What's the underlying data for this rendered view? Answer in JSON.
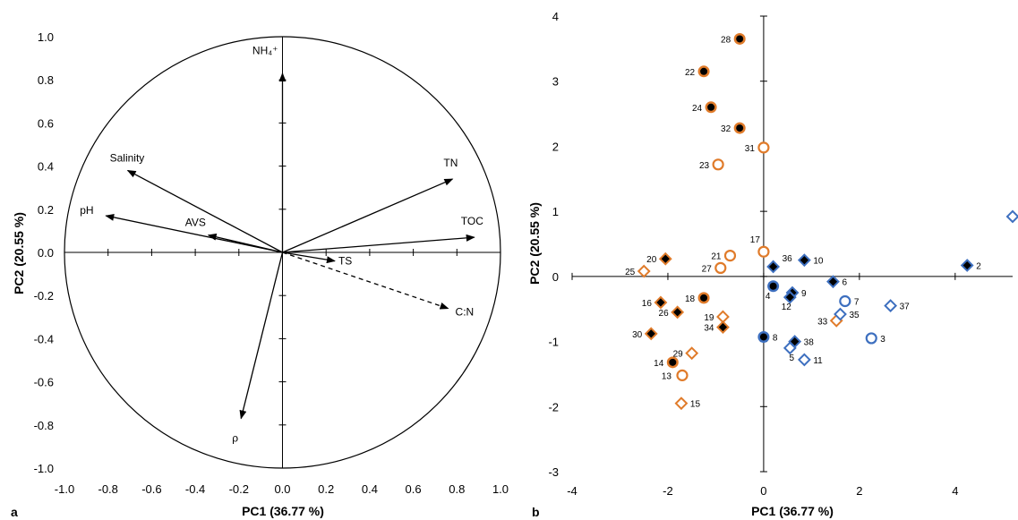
{
  "chart_data": [
    {
      "type": "scatter",
      "panel_label": "a",
      "xlabel": "PC1 (36.77 %)",
      "ylabel": "PC2 (20.55 %)",
      "xlim": [
        -1.0,
        1.0
      ],
      "ylim": [
        -1.0,
        1.0
      ],
      "xticks": [
        "-1.0",
        "-0.8",
        "-0.6",
        "-0.4",
        "-0.2",
        "0.0",
        "0.2",
        "0.4",
        "0.6",
        "0.8",
        "1.0"
      ],
      "yticks": [
        "-1.0",
        "-0.8",
        "-0.6",
        "-0.4",
        "-0.2",
        "0.0",
        "0.2",
        "0.4",
        "0.6",
        "0.8",
        "1.0"
      ],
      "unit_circle": true,
      "grid": false,
      "vectors": [
        {
          "name": "NH₄⁺",
          "x": 0.0,
          "y": 0.83,
          "dashed": false
        },
        {
          "name": "Salinity",
          "x": -0.71,
          "y": 0.38,
          "dashed": false
        },
        {
          "name": "pH",
          "x": -0.81,
          "y": 0.17,
          "dashed": false
        },
        {
          "name": "AVS",
          "x": -0.34,
          "y": 0.08,
          "dashed": false
        },
        {
          "name": "TN",
          "x": 0.78,
          "y": 0.34,
          "dashed": false
        },
        {
          "name": "TOC",
          "x": 0.88,
          "y": 0.07,
          "dashed": false
        },
        {
          "name": "TS",
          "x": 0.24,
          "y": -0.04,
          "dashed": false
        },
        {
          "name": "C:N",
          "x": 0.76,
          "y": -0.26,
          "dashed": true
        },
        {
          "name": "ρ",
          "x": -0.19,
          "y": -0.77,
          "dashed": false
        }
      ]
    },
    {
      "type": "scatter",
      "panel_label": "b",
      "xlabel": "PC1 (36.77 %)",
      "ylabel": "PC2 (20.55 %)",
      "xlim": [
        -4,
        5.2
      ],
      "ylim": [
        -3,
        4
      ],
      "xticks": [
        -4,
        -2,
        0,
        2,
        4
      ],
      "yticks": [
        -3,
        -2,
        -1,
        0,
        1,
        2,
        3,
        4
      ],
      "grid": false,
      "colors": {
        "orange": "#e07b2a",
        "blue": "#3d6fbf",
        "black": "#000000"
      },
      "points": [
        {
          "id": "1",
          "x": 5.2,
          "y": 0.92,
          "color": "blue",
          "shape": "diamond",
          "fill": "open"
        },
        {
          "id": "2",
          "x": 4.25,
          "y": 0.17,
          "color": "blue",
          "shape": "diamond",
          "fill": "filled"
        },
        {
          "id": "3",
          "x": 2.25,
          "y": -0.95,
          "color": "blue",
          "shape": "circle",
          "fill": "open"
        },
        {
          "id": "4",
          "x": 0.2,
          "y": -0.15,
          "color": "blue",
          "shape": "circle",
          "fill": "filled"
        },
        {
          "id": "5",
          "x": 0.55,
          "y": -1.1,
          "color": "blue",
          "shape": "diamond",
          "fill": "open"
        },
        {
          "id": "6",
          "x": 1.45,
          "y": -0.08,
          "color": "blue",
          "shape": "diamond",
          "fill": "filled"
        },
        {
          "id": "7",
          "x": 1.7,
          "y": -0.38,
          "color": "blue",
          "shape": "circle",
          "fill": "open"
        },
        {
          "id": "8",
          "x": 0.0,
          "y": -0.93,
          "color": "blue",
          "shape": "circle",
          "fill": "filled"
        },
        {
          "id": "9",
          "x": 0.6,
          "y": -0.25,
          "color": "blue",
          "shape": "diamond",
          "fill": "filled"
        },
        {
          "id": "10",
          "x": 0.85,
          "y": 0.25,
          "color": "blue",
          "shape": "diamond",
          "fill": "filled"
        },
        {
          "id": "11",
          "x": 0.85,
          "y": -1.28,
          "color": "blue",
          "shape": "diamond",
          "fill": "open"
        },
        {
          "id": "12",
          "x": 0.55,
          "y": -0.32,
          "color": "blue",
          "shape": "diamond",
          "fill": "filled"
        },
        {
          "id": "13",
          "x": -1.7,
          "y": -1.52,
          "color": "orange",
          "shape": "circle",
          "fill": "open"
        },
        {
          "id": "14",
          "x": -1.9,
          "y": -1.32,
          "color": "orange",
          "shape": "circle",
          "fill": "filled"
        },
        {
          "id": "15",
          "x": -1.72,
          "y": -1.95,
          "color": "orange",
          "shape": "diamond",
          "fill": "open"
        },
        {
          "id": "16",
          "x": -2.15,
          "y": -0.4,
          "color": "orange",
          "shape": "diamond",
          "fill": "filled"
        },
        {
          "id": "17",
          "x": 0.0,
          "y": 0.38,
          "color": "orange",
          "shape": "circle",
          "fill": "open"
        },
        {
          "id": "18",
          "x": -1.25,
          "y": -0.33,
          "color": "orange",
          "shape": "circle",
          "fill": "filled"
        },
        {
          "id": "19",
          "x": -0.85,
          "y": -0.62,
          "color": "orange",
          "shape": "diamond",
          "fill": "open"
        },
        {
          "id": "20",
          "x": -2.05,
          "y": 0.27,
          "color": "orange",
          "shape": "diamond",
          "fill": "filled"
        },
        {
          "id": "21",
          "x": -0.7,
          "y": 0.32,
          "color": "orange",
          "shape": "circle",
          "fill": "open"
        },
        {
          "id": "22",
          "x": -1.25,
          "y": 3.15,
          "color": "orange",
          "shape": "circle",
          "fill": "filled"
        },
        {
          "id": "23",
          "x": -0.95,
          "y": 1.72,
          "color": "orange",
          "shape": "circle",
          "fill": "open"
        },
        {
          "id": "24",
          "x": -1.1,
          "y": 2.6,
          "color": "orange",
          "shape": "circle",
          "fill": "filled"
        },
        {
          "id": "25",
          "x": -2.5,
          "y": 0.08,
          "color": "orange",
          "shape": "diamond",
          "fill": "open"
        },
        {
          "id": "26",
          "x": -1.8,
          "y": -0.55,
          "color": "orange",
          "shape": "diamond",
          "fill": "filled"
        },
        {
          "id": "27",
          "x": -0.9,
          "y": 0.13,
          "color": "orange",
          "shape": "circle",
          "fill": "open"
        },
        {
          "id": "28",
          "x": -0.5,
          "y": 3.65,
          "color": "orange",
          "shape": "circle",
          "fill": "filled"
        },
        {
          "id": "29",
          "x": -1.5,
          "y": -1.18,
          "color": "orange",
          "shape": "diamond",
          "fill": "open"
        },
        {
          "id": "30",
          "x": -2.35,
          "y": -0.88,
          "color": "orange",
          "shape": "diamond",
          "fill": "filled"
        },
        {
          "id": "31",
          "x": 0.0,
          "y": 1.98,
          "color": "orange",
          "shape": "circle",
          "fill": "open"
        },
        {
          "id": "32",
          "x": -0.5,
          "y": 2.28,
          "color": "orange",
          "shape": "circle",
          "fill": "filled"
        },
        {
          "id": "33",
          "x": 1.52,
          "y": -0.68,
          "color": "orange",
          "shape": "diamond",
          "fill": "open"
        },
        {
          "id": "34",
          "x": -0.85,
          "y": -0.78,
          "color": "orange",
          "shape": "diamond",
          "fill": "filled"
        },
        {
          "id": "35",
          "x": 1.6,
          "y": -0.58,
          "color": "blue",
          "shape": "diamond",
          "fill": "open"
        },
        {
          "id": "36",
          "x": 0.2,
          "y": 0.15,
          "color": "blue",
          "shape": "diamond",
          "fill": "filled"
        },
        {
          "id": "37",
          "x": 2.65,
          "y": -0.45,
          "color": "blue",
          "shape": "diamond",
          "fill": "open"
        },
        {
          "id": "38",
          "x": 0.65,
          "y": -1.0,
          "color": "blue",
          "shape": "diamond",
          "fill": "filled"
        }
      ]
    }
  ]
}
